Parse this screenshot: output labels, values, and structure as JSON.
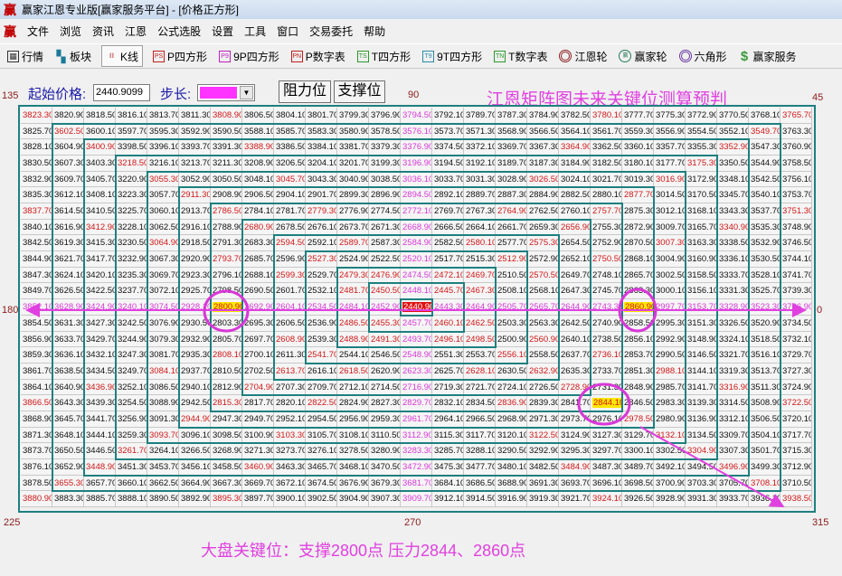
{
  "window": {
    "title": "赢家江恩专业版[赢家服务平台] - [价格正方形]",
    "logo": "赢"
  },
  "menu": [
    "文件",
    "浏览",
    "资讯",
    "江恩",
    "公式选股",
    "设置",
    "工具",
    "窗口",
    "交易委托",
    "帮助"
  ],
  "toolbar": [
    {
      "label": "行情",
      "icon": "grid-table-icon"
    },
    {
      "label": "板块",
      "icon": "blocks-icon"
    },
    {
      "label": "K线",
      "icon": "candlestick-icon",
      "pressed": true
    },
    {
      "label": "P四方形",
      "icon": "PS"
    },
    {
      "label": "9P四方形",
      "icon": "P9"
    },
    {
      "label": "P数字表",
      "icon": "PN"
    },
    {
      "label": "T四方形",
      "icon": "TS"
    },
    {
      "label": "9T四方形",
      "icon": "T9"
    },
    {
      "label": "T数字表",
      "icon": "TN"
    },
    {
      "label": "江恩轮",
      "icon": "gann-wheel-icon"
    },
    {
      "label": "赢家轮",
      "icon": "winner-wheel-icon"
    },
    {
      "label": "六角形",
      "icon": "hexagon-icon"
    },
    {
      "label": "赢家服务",
      "icon": "dollar-icon"
    }
  ],
  "controls": {
    "start_price_label": "起始价格:",
    "start_price": "2440.9099",
    "step_label": "步长:",
    "step_color": "#ff33ff",
    "resistance_button": "阻力位",
    "support_button": "支撑位"
  },
  "headline": "江恩矩阵图未来关键位测算预判",
  "angles": {
    "a135": "135",
    "a90": "90",
    "a45": "45",
    "a180": "180",
    "a0": "0",
    "a225": "225",
    "a270": "270",
    "a315": "315"
  },
  "footnote": "大盘关键位：支撑2800点    压力2844、2860点",
  "colors": {
    "frame": "#1f7f80",
    "annotation": "#e040e0",
    "corner_text": "#d01818",
    "axis_text": "#d838d8",
    "highlight": "#ffe600",
    "center": "#e01010"
  },
  "highlights": [
    2800.9,
    2860.9,
    2844.1
  ],
  "center_value": 2440.9,
  "grid": [
    [
      3823.3,
      3820.9,
      3818.5,
      3816.1,
      3813.7,
      3811.3,
      3808.9,
      3806.5,
      3804.1,
      3801.7,
      3799.3,
      3796.9,
      3794.5,
      3792.1,
      3789.7,
      3787.3,
      3784.9,
      3782.5,
      3780.1,
      3777.7,
      3775.3,
      3772.9,
      3770.5,
      3768.1,
      3765.7
    ],
    [
      3825.7,
      3602.5,
      3600.1,
      3597.7,
      3595.3,
      3592.9,
      3590.5,
      3588.1,
      3585.7,
      3583.3,
      3580.9,
      3578.5,
      3576.1,
      3573.7,
      3571.3,
      3568.9,
      3566.5,
      3564.1,
      3561.7,
      3559.3,
      3556.9,
      3554.5,
      3552.1,
      3549.7,
      3763.3
    ],
    [
      3828.1,
      3604.9,
      3400.9,
      3398.5,
      3396.1,
      3393.7,
      3391.3,
      3388.9,
      3386.5,
      3384.1,
      3381.7,
      3379.3,
      3376.9,
      3374.5,
      3372.1,
      3369.7,
      3367.3,
      3364.9,
      3362.5,
      3360.1,
      3357.7,
      3355.3,
      3352.9,
      3547.3,
      3760.9
    ],
    [
      3830.5,
      3607.3,
      3403.3,
      3218.5,
      3216.1,
      3213.7,
      3211.3,
      3208.9,
      3206.5,
      3204.1,
      3201.7,
      3199.3,
      3196.9,
      3194.5,
      3192.1,
      3189.7,
      3187.3,
      3184.9,
      3182.5,
      3180.1,
      3177.7,
      3175.3,
      3350.5,
      3544.9,
      3758.5
    ],
    [
      3832.9,
      3609.7,
      3405.7,
      3220.9,
      3055.3,
      3052.9,
      3050.5,
      3048.1,
      3045.7,
      3043.3,
      3040.9,
      3038.5,
      3036.1,
      3033.7,
      3031.3,
      3028.9,
      3026.5,
      3024.1,
      3021.7,
      3019.3,
      3016.9,
      3172.9,
      3348.1,
      3542.5,
      3756.1
    ],
    [
      3835.3,
      3612.1,
      3408.1,
      3223.3,
      3057.7,
      2911.3,
      2908.9,
      2906.5,
      2904.1,
      2901.7,
      2899.3,
      2896.9,
      2894.5,
      2892.1,
      2889.7,
      2887.3,
      2884.9,
      2882.5,
      2880.1,
      2877.7,
      3014.5,
      3170.5,
      3345.7,
      3540.1,
      3753.7
    ],
    [
      3837.7,
      3614.5,
      3410.5,
      3225.7,
      3060.1,
      2913.7,
      2786.5,
      2784.1,
      2781.7,
      2779.3,
      2776.9,
      2774.5,
      2772.1,
      2769.7,
      2767.3,
      2764.9,
      2762.5,
      2760.1,
      2757.7,
      2875.3,
      3012.1,
      3168.1,
      3343.3,
      3537.7,
      3751.3
    ],
    [
      3840.1,
      3616.9,
      3412.9,
      3228.1,
      3062.5,
      2916.1,
      2788.9,
      2680.9,
      2678.5,
      2676.1,
      2673.7,
      2671.3,
      2668.9,
      2666.5,
      2664.1,
      2661.7,
      2659.3,
      2656.9,
      2755.3,
      2872.9,
      3009.7,
      3165.7,
      3340.9,
      3535.3,
      3748.9
    ],
    [
      3842.5,
      3619.3,
      3415.3,
      3230.5,
      3064.9,
      2918.5,
      2791.3,
      2683.3,
      2594.5,
      2592.1,
      2589.7,
      2587.3,
      2584.9,
      2582.5,
      2580.1,
      2577.7,
      2575.3,
      2654.5,
      2752.9,
      2870.5,
      3007.3,
      3163.3,
      3338.5,
      3532.9,
      3746.5
    ],
    [
      3844.9,
      3621.7,
      3417.7,
      3232.9,
      3067.3,
      2920.9,
      2793.7,
      2685.7,
      2596.9,
      2527.3,
      2524.9,
      2522.5,
      2520.1,
      2517.7,
      2515.3,
      2512.9,
      2572.9,
      2652.1,
      2750.5,
      2868.1,
      3004.9,
      3160.9,
      3336.1,
      3530.5,
      3744.1
    ],
    [
      3847.3,
      3624.1,
      3420.1,
      3235.3,
      3069.7,
      2923.3,
      2796.1,
      2688.1,
      2599.3,
      2529.7,
      2479.3,
      2476.9,
      2474.5,
      2472.1,
      2469.7,
      2510.5,
      2570.5,
      2649.7,
      2748.1,
      2865.7,
      3002.5,
      3158.5,
      3333.7,
      3528.1,
      3741.7
    ],
    [
      3849.7,
      3626.5,
      3422.5,
      3237.7,
      3072.1,
      2925.7,
      2798.5,
      2690.5,
      2601.7,
      2532.1,
      2481.7,
      2450.5,
      2448.1,
      2445.7,
      2467.3,
      2508.1,
      2568.1,
      2647.3,
      2745.7,
      2863.3,
      3000.1,
      3156.1,
      3331.3,
      3525.7,
      3739.3
    ],
    [
      3852.1,
      3628.9,
      3424.9,
      3240.1,
      3074.5,
      2928.1,
      2800.9,
      2692.9,
      2604.1,
      2534.5,
      2484.1,
      2452.9,
      2440.9,
      2443.3,
      2464.9,
      2505.7,
      2565.7,
      2644.9,
      2743.3,
      2860.9,
      2997.7,
      3153.7,
      3328.9,
      3523.3,
      3736.9
    ],
    [
      3854.5,
      3631.3,
      3427.3,
      3242.5,
      3076.9,
      2930.5,
      2803.3,
      2695.3,
      2606.5,
      2536.9,
      2486.5,
      2455.3,
      2457.7,
      2460.1,
      2462.5,
      2503.3,
      2563.3,
      2642.5,
      2740.9,
      2858.5,
      2995.3,
      3151.3,
      3326.5,
      3520.9,
      3734.5
    ],
    [
      3856.9,
      3633.7,
      3429.7,
      3244.9,
      3079.3,
      2932.9,
      2805.7,
      2697.7,
      2608.9,
      2539.3,
      2488.9,
      2491.3,
      2493.7,
      2496.1,
      2498.5,
      2500.9,
      2560.9,
      2640.1,
      2738.5,
      2856.1,
      2992.9,
      3148.9,
      3324.1,
      3518.5,
      3732.1
    ],
    [
      3859.3,
      3636.1,
      3432.1,
      3247.3,
      3081.7,
      2935.3,
      2808.1,
      2700.1,
      2611.3,
      2541.7,
      2544.1,
      2546.5,
      2548.9,
      2551.3,
      2553.7,
      2556.1,
      2558.5,
      2637.7,
      2736.1,
      2853.7,
      2990.5,
      3146.5,
      3321.7,
      3516.1,
      3729.7
    ],
    [
      3861.7,
      3638.5,
      3434.5,
      3249.7,
      3084.1,
      2937.7,
      2810.5,
      2702.5,
      2613.7,
      2616.1,
      2618.5,
      2620.9,
      2623.3,
      2625.7,
      2628.1,
      2630.5,
      2632.9,
      2635.3,
      2733.7,
      2851.3,
      2988.1,
      3144.1,
      3319.3,
      3513.7,
      3727.3
    ],
    [
      3864.1,
      3640.9,
      3436.9,
      3252.1,
      3086.5,
      2940.1,
      2812.9,
      2704.9,
      2707.3,
      2709.7,
      2712.1,
      2714.5,
      2716.9,
      2719.3,
      2721.7,
      2724.1,
      2726.5,
      2728.9,
      2731.3,
      2848.9,
      2985.7,
      3141.7,
      3316.9,
      3511.3,
      3724.9
    ],
    [
      3866.5,
      3643.3,
      3439.3,
      3254.5,
      3088.9,
      2942.5,
      2815.3,
      2817.7,
      2820.1,
      2822.5,
      2824.9,
      2827.3,
      2829.7,
      2832.1,
      2834.5,
      2836.9,
      2839.3,
      2841.7,
      2844.1,
      2846.5,
      2983.3,
      3139.3,
      3314.5,
      3508.9,
      3722.5
    ],
    [
      3868.9,
      3645.7,
      3441.7,
      3256.9,
      3091.3,
      2944.9,
      2947.3,
      2949.7,
      2952.1,
      2954.5,
      2956.9,
      2959.3,
      2961.7,
      2964.1,
      2966.5,
      2968.9,
      2971.3,
      2973.7,
      2976.1,
      2978.5,
      2980.9,
      3136.9,
      3312.1,
      3506.5,
      3720.1
    ],
    [
      3871.3,
      3648.1,
      3444.1,
      3259.3,
      3093.7,
      3096.1,
      3098.5,
      3100.9,
      3103.3,
      3105.7,
      3108.1,
      3110.5,
      3112.9,
      3115.3,
      3117.7,
      3120.1,
      3122.5,
      3124.9,
      3127.3,
      3129.7,
      3132.1,
      3134.5,
      3309.7,
      3504.1,
      3717.7
    ],
    [
      3873.7,
      3650.5,
      3446.5,
      3261.7,
      3264.1,
      3266.5,
      3268.9,
      3271.3,
      3273.7,
      3276.1,
      3278.5,
      3280.9,
      3283.3,
      3285.7,
      3288.1,
      3290.5,
      3292.9,
      3295.3,
      3297.7,
      3300.1,
      3302.5,
      3304.9,
      3307.3,
      3501.7,
      3715.3
    ],
    [
      3876.1,
      3652.9,
      3448.9,
      3451.3,
      3453.7,
      3456.1,
      3458.5,
      3460.9,
      3463.3,
      3465.7,
      3468.1,
      3470.5,
      3472.9,
      3475.3,
      3477.7,
      3480.1,
      3482.5,
      3484.9,
      3487.3,
      3489.7,
      3492.1,
      3494.5,
      3496.9,
      3499.3,
      3712.9
    ],
    [
      3878.5,
      3655.3,
      3657.7,
      3660.1,
      3662.5,
      3664.9,
      3667.3,
      3669.7,
      3672.1,
      3674.5,
      3676.9,
      3679.3,
      3681.7,
      3684.1,
      3686.5,
      3688.9,
      3691.3,
      3693.7,
      3696.1,
      3698.5,
      3700.9,
      3703.3,
      3705.7,
      3708.1,
      3710.5
    ],
    [
      3880.9,
      3883.3,
      3885.7,
      3888.1,
      3890.5,
      3892.9,
      3895.3,
      3897.7,
      3900.1,
      3902.5,
      3904.9,
      3907.3,
      3909.7,
      3912.1,
      3914.5,
      3916.9,
      3919.3,
      3921.7,
      3924.1,
      3926.5,
      3928.9,
      3931.3,
      3933.7,
      3936.1,
      3938.5
    ]
  ]
}
